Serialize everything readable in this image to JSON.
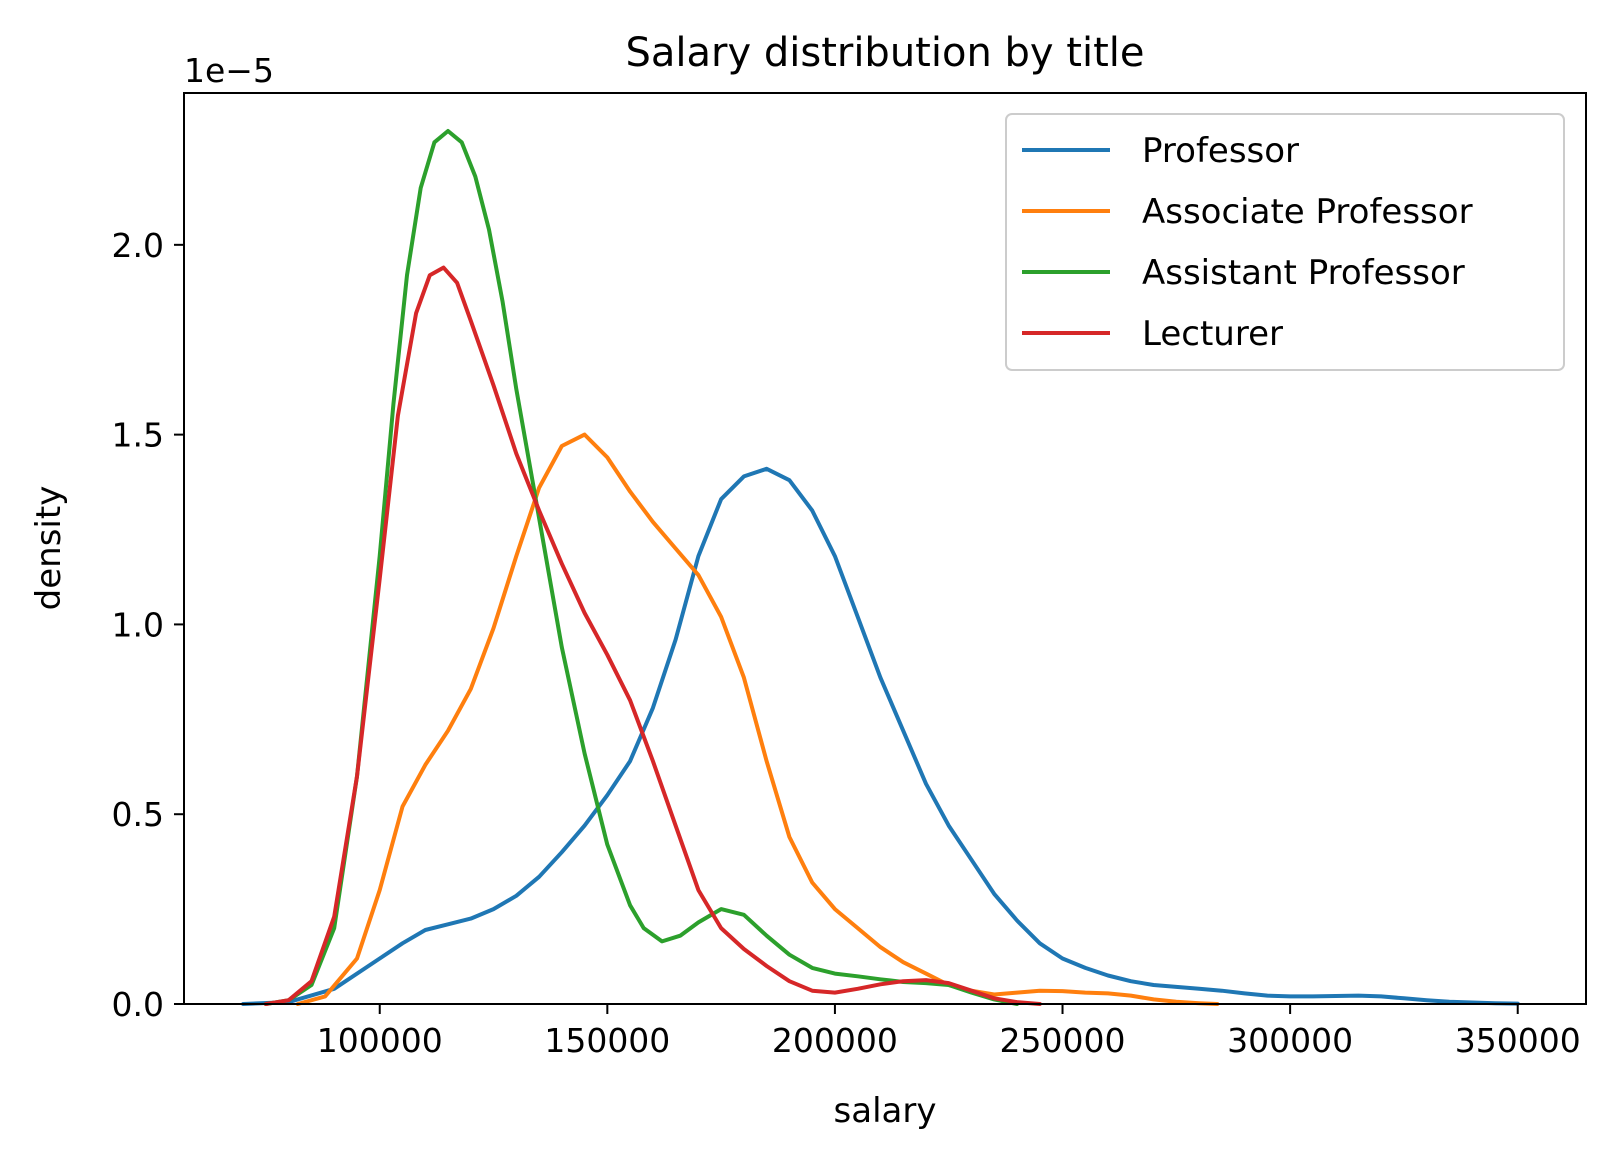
{
  "chart_data": {
    "type": "line",
    "title": "Salary distribution by title",
    "xlabel": "salary",
    "ylabel": "density",
    "y_offset_text": "1e−5",
    "xlim": [
      57000,
      365000
    ],
    "ylim": [
      0,
      2.4
    ],
    "xticks": [
      100000,
      150000,
      200000,
      250000,
      300000,
      350000
    ],
    "xtick_labels": [
      "100000",
      "150000",
      "200000",
      "250000",
      "300000",
      "350000"
    ],
    "yticks": [
      0,
      0.5,
      1.0,
      1.5,
      2.0
    ],
    "ytick_labels": [
      "0.0",
      "0.5",
      "1.0",
      "1.5",
      "2.0"
    ],
    "grid": false,
    "legend_position": "top-right",
    "series": [
      {
        "name": "Professor",
        "color": "#1f77b4",
        "points": [
          [
            70000,
            0.0
          ],
          [
            80000,
            0.005
          ],
          [
            90000,
            0.04
          ],
          [
            100000,
            0.12
          ],
          [
            105000,
            0.16
          ],
          [
            110000,
            0.195
          ],
          [
            115000,
            0.21
          ],
          [
            120000,
            0.225
          ],
          [
            125000,
            0.25
          ],
          [
            130000,
            0.285
          ],
          [
            135000,
            0.335
          ],
          [
            140000,
            0.4
          ],
          [
            145000,
            0.47
          ],
          [
            150000,
            0.55
          ],
          [
            155000,
            0.64
          ],
          [
            160000,
            0.78
          ],
          [
            165000,
            0.96
          ],
          [
            170000,
            1.18
          ],
          [
            175000,
            1.33
          ],
          [
            180000,
            1.39
          ],
          [
            185000,
            1.41
          ],
          [
            190000,
            1.38
          ],
          [
            195000,
            1.3
          ],
          [
            200000,
            1.18
          ],
          [
            205000,
            1.02
          ],
          [
            210000,
            0.86
          ],
          [
            215000,
            0.72
          ],
          [
            220000,
            0.58
          ],
          [
            225000,
            0.47
          ],
          [
            230000,
            0.38
          ],
          [
            235000,
            0.29
          ],
          [
            240000,
            0.22
          ],
          [
            245000,
            0.16
          ],
          [
            250000,
            0.12
          ],
          [
            255000,
            0.095
          ],
          [
            260000,
            0.075
          ],
          [
            265000,
            0.06
          ],
          [
            270000,
            0.05
          ],
          [
            275000,
            0.045
          ],
          [
            280000,
            0.04
          ],
          [
            285000,
            0.035
          ],
          [
            290000,
            0.028
          ],
          [
            295000,
            0.022
          ],
          [
            300000,
            0.02
          ],
          [
            305000,
            0.02
          ],
          [
            310000,
            0.021
          ],
          [
            315000,
            0.022
          ],
          [
            320000,
            0.02
          ],
          [
            325000,
            0.015
          ],
          [
            330000,
            0.01
          ],
          [
            335000,
            0.006
          ],
          [
            340000,
            0.004
          ],
          [
            345000,
            0.002
          ],
          [
            350000,
            0.001
          ]
        ]
      },
      {
        "name": "Associate Professor",
        "color": "#ff7f0e",
        "points": [
          [
            82000,
            0.0
          ],
          [
            88000,
            0.02
          ],
          [
            95000,
            0.12
          ],
          [
            100000,
            0.3
          ],
          [
            105000,
            0.52
          ],
          [
            110000,
            0.63
          ],
          [
            115000,
            0.72
          ],
          [
            120000,
            0.83
          ],
          [
            125000,
            0.99
          ],
          [
            130000,
            1.18
          ],
          [
            135000,
            1.36
          ],
          [
            140000,
            1.47
          ],
          [
            145000,
            1.5
          ],
          [
            150000,
            1.44
          ],
          [
            155000,
            1.35
          ],
          [
            160000,
            1.27
          ],
          [
            165000,
            1.2
          ],
          [
            170000,
            1.13
          ],
          [
            175000,
            1.02
          ],
          [
            180000,
            0.86
          ],
          [
            185000,
            0.64
          ],
          [
            190000,
            0.44
          ],
          [
            195000,
            0.32
          ],
          [
            200000,
            0.25
          ],
          [
            205000,
            0.2
          ],
          [
            210000,
            0.15
          ],
          [
            215000,
            0.11
          ],
          [
            220000,
            0.08
          ],
          [
            225000,
            0.05
          ],
          [
            230000,
            0.035
          ],
          [
            235000,
            0.025
          ],
          [
            240000,
            0.03
          ],
          [
            245000,
            0.035
          ],
          [
            250000,
            0.034
          ],
          [
            255000,
            0.03
          ],
          [
            260000,
            0.028
          ],
          [
            265000,
            0.022
          ],
          [
            270000,
            0.012
          ],
          [
            275000,
            0.006
          ],
          [
            280000,
            0.002
          ],
          [
            284000,
            0.0
          ]
        ]
      },
      {
        "name": "Assistant Professor",
        "color": "#2ca02c",
        "points": [
          [
            75000,
            0.0
          ],
          [
            80000,
            0.01
          ],
          [
            85000,
            0.05
          ],
          [
            90000,
            0.2
          ],
          [
            95000,
            0.6
          ],
          [
            100000,
            1.18
          ],
          [
            103000,
            1.58
          ],
          [
            106000,
            1.92
          ],
          [
            109000,
            2.15
          ],
          [
            112000,
            2.27
          ],
          [
            115000,
            2.3
          ],
          [
            118000,
            2.27
          ],
          [
            121000,
            2.18
          ],
          [
            124000,
            2.04
          ],
          [
            127000,
            1.85
          ],
          [
            130000,
            1.62
          ],
          [
            135000,
            1.28
          ],
          [
            140000,
            0.94
          ],
          [
            145000,
            0.66
          ],
          [
            150000,
            0.42
          ],
          [
            155000,
            0.26
          ],
          [
            158000,
            0.2
          ],
          [
            162000,
            0.165
          ],
          [
            166000,
            0.18
          ],
          [
            170000,
            0.215
          ],
          [
            175000,
            0.25
          ],
          [
            180000,
            0.235
          ],
          [
            185000,
            0.18
          ],
          [
            190000,
            0.13
          ],
          [
            195000,
            0.095
          ],
          [
            200000,
            0.08
          ],
          [
            205000,
            0.073
          ],
          [
            210000,
            0.065
          ],
          [
            215000,
            0.058
          ],
          [
            220000,
            0.055
          ],
          [
            225000,
            0.05
          ],
          [
            230000,
            0.03
          ],
          [
            235000,
            0.012
          ],
          [
            240000,
            0.0
          ]
        ]
      },
      {
        "name": "Lecturer",
        "color": "#d62728",
        "points": [
          [
            75000,
            0.0
          ],
          [
            80000,
            0.01
          ],
          [
            85000,
            0.06
          ],
          [
            90000,
            0.23
          ],
          [
            95000,
            0.6
          ],
          [
            100000,
            1.12
          ],
          [
            104000,
            1.55
          ],
          [
            108000,
            1.82
          ],
          [
            111000,
            1.92
          ],
          [
            114000,
            1.94
          ],
          [
            117000,
            1.9
          ],
          [
            120000,
            1.8
          ],
          [
            125000,
            1.63
          ],
          [
            130000,
            1.45
          ],
          [
            135000,
            1.3
          ],
          [
            140000,
            1.16
          ],
          [
            145000,
            1.03
          ],
          [
            150000,
            0.92
          ],
          [
            155000,
            0.8
          ],
          [
            160000,
            0.64
          ],
          [
            165000,
            0.47
          ],
          [
            170000,
            0.3
          ],
          [
            175000,
            0.2
          ],
          [
            180000,
            0.145
          ],
          [
            185000,
            0.1
          ],
          [
            190000,
            0.06
          ],
          [
            195000,
            0.035
          ],
          [
            200000,
            0.03
          ],
          [
            205000,
            0.04
          ],
          [
            210000,
            0.052
          ],
          [
            215000,
            0.06
          ],
          [
            220000,
            0.063
          ],
          [
            225000,
            0.055
          ],
          [
            230000,
            0.035
          ],
          [
            235000,
            0.015
          ],
          [
            240000,
            0.005
          ],
          [
            245000,
            0.0
          ]
        ]
      }
    ]
  }
}
